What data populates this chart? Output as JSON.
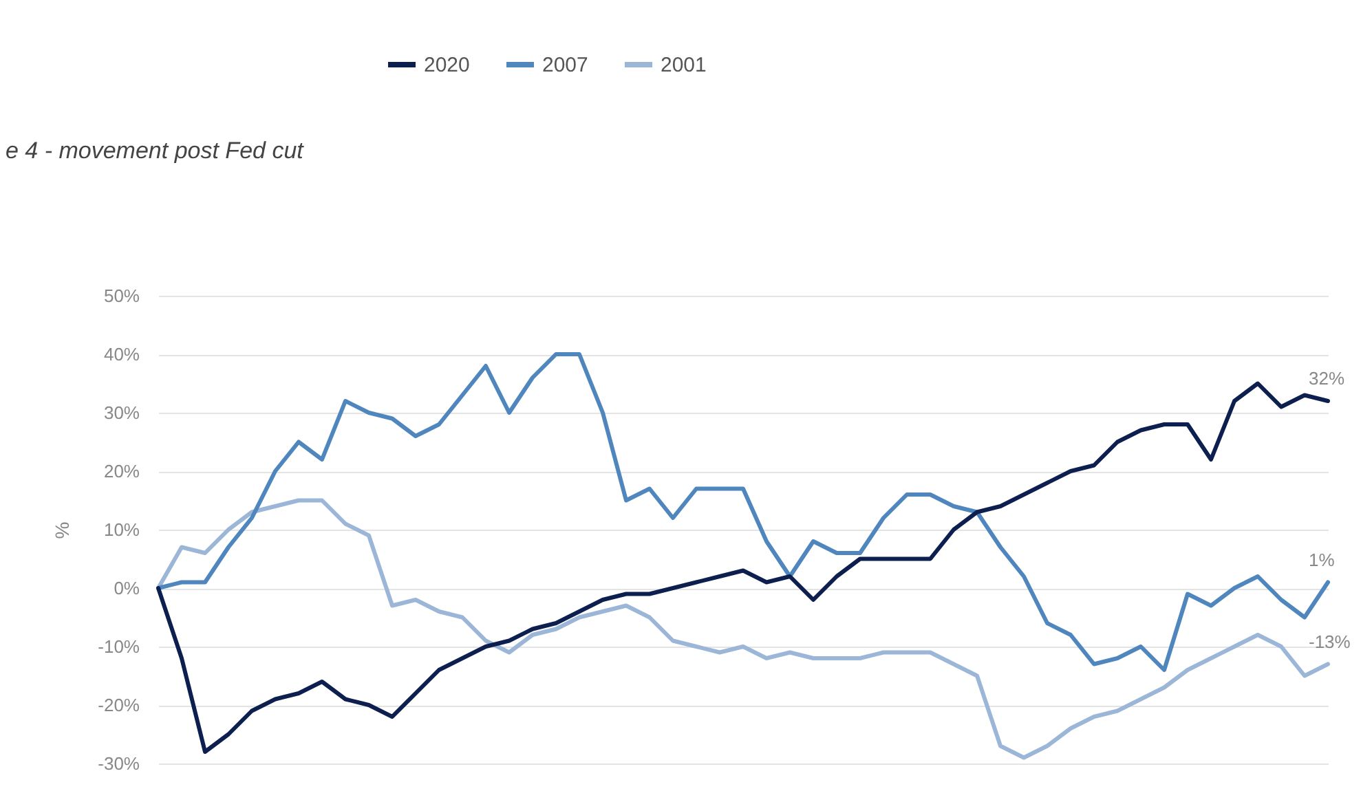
{
  "chart_data": {
    "type": "line",
    "ylabel": "%",
    "categories": [
      null,
      null,
      null,
      null,
      null,
      null,
      null,
      null,
      null,
      null,
      null,
      null,
      null,
      null,
      null,
      null,
      null,
      null,
      null,
      null,
      null,
      null,
      null,
      null,
      null,
      null,
      null,
      null,
      null,
      null,
      null,
      null,
      null,
      null,
      null,
      null,
      null,
      null,
      null,
      null,
      null,
      null,
      null,
      null,
      null,
      null,
      null,
      null,
      null,
      null,
      null
    ],
    "series": [
      {
        "name": "2020",
        "color": "#0d1f4e",
        "values": [
          0,
          -12,
          -28,
          -25,
          -21,
          -19,
          -18,
          -16,
          -19,
          -20,
          -22,
          -18,
          -14,
          -12,
          -10,
          -9,
          -7,
          -6,
          -4,
          -2,
          -1,
          -1,
          0,
          1,
          2,
          3,
          1,
          2,
          -2,
          2,
          5,
          5,
          5,
          5,
          10,
          13,
          14,
          16,
          18,
          20,
          21,
          25,
          27,
          28,
          28,
          22,
          32,
          35,
          31,
          33,
          32
        ]
      },
      {
        "name": "2007",
        "color": "#4f86bd",
        "values": [
          0,
          1,
          1,
          7,
          12,
          20,
          25,
          22,
          32,
          30,
          29,
          26,
          28,
          33,
          38,
          30,
          36,
          40,
          40,
          30,
          15,
          17,
          12,
          17,
          17,
          17,
          8,
          2,
          8,
          6,
          6,
          12,
          16,
          16,
          14,
          13,
          7,
          2,
          -6,
          -8,
          -13,
          -12,
          -10,
          -14,
          -1,
          -3,
          0,
          2,
          -2,
          -5,
          1
        ]
      },
      {
        "name": "2001",
        "color": "#9bb6d6",
        "values": [
          0,
          7,
          6,
          10,
          13,
          14,
          15,
          15,
          11,
          9,
          -3,
          -2,
          -4,
          -5,
          -9,
          -11,
          -8,
          -7,
          -5,
          -4,
          -3,
          -5,
          -9,
          -10,
          -11,
          -10,
          -12,
          -11,
          -12,
          -12,
          -12,
          -11,
          -11,
          -11,
          -13,
          -15,
          -27,
          -29,
          -27,
          -24,
          -22,
          -21,
          -19,
          -17,
          -14,
          -12,
          -10,
          -8,
          -10,
          -15,
          -13
        ]
      }
    ],
    "ylim": [
      -30,
      50
    ],
    "yticks": [
      {
        "value": -30,
        "label": "-30%"
      },
      {
        "value": -20,
        "label": "-20%"
      },
      {
        "value": -10,
        "label": "-10%"
      },
      {
        "value": 0,
        "label": "0%"
      },
      {
        "value": 10,
        "label": "10%"
      },
      {
        "value": 20,
        "label": "20%"
      },
      {
        "value": 30,
        "label": "30%"
      },
      {
        "value": 40,
        "label": "40%"
      },
      {
        "value": 50,
        "label": "50%"
      }
    ],
    "grid": "y",
    "legend": "top",
    "annotations": [
      "e 4 - movement post Fed cut",
      {
        "text": "32%",
        "y": 32
      },
      {
        "text": "1%",
        "y": 1
      },
      {
        "text": "-13%",
        "y": -13
      }
    ]
  }
}
